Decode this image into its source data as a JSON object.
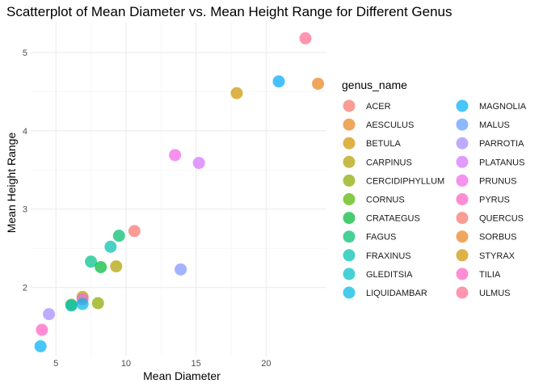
{
  "chart_data": {
    "type": "scatter",
    "title": "Scatterplot of Mean Diameter vs. Mean Height Range for Different Genus",
    "xlabel": "Mean Diameter",
    "ylabel": "Mean Height Range",
    "xlim": [
      3.2,
      24.3
    ],
    "ylim": [
      1.13,
      5.38
    ],
    "xticks": [
      5,
      10,
      15,
      20
    ],
    "yticks": [
      2,
      3,
      4,
      5
    ],
    "grid": true,
    "legend": {
      "title": "genus_name",
      "placement": "right",
      "columns": 2
    },
    "genera": [
      {
        "name": "ACER",
        "color": "#F8766D"
      },
      {
        "name": "AESCULUS",
        "color": "#E7851E"
      },
      {
        "name": "BETULA",
        "color": "#D09400"
      },
      {
        "name": "CARPINUS",
        "color": "#B2A100"
      },
      {
        "name": "CERCIDIPHYLLUM",
        "color": "#8BAB00"
      },
      {
        "name": "CORNUS",
        "color": "#55B400"
      },
      {
        "name": "CRATAEGUS",
        "color": "#00BA38"
      },
      {
        "name": "FAGUS",
        "color": "#00BE6C"
      },
      {
        "name": "FRAXINUS",
        "color": "#00C0AF"
      },
      {
        "name": "GLEDITSIA",
        "color": "#00BFC4"
      },
      {
        "name": "LIQUIDAMBAR",
        "color": "#00B8E5"
      },
      {
        "name": "MAGNOLIA",
        "color": "#00B0F6"
      },
      {
        "name": "MALUS",
        "color": "#619CFF"
      },
      {
        "name": "PARROTIA",
        "color": "#A58AFF"
      },
      {
        "name": "PLATANUS",
        "color": "#D575FE"
      },
      {
        "name": "PRUNUS",
        "color": "#F166E8"
      },
      {
        "name": "PYRUS",
        "color": "#FF61C3"
      },
      {
        "name": "QUERCUS",
        "color": "#F8766D"
      },
      {
        "name": "SORBUS",
        "color": "#E7851E"
      },
      {
        "name": "STYRAX",
        "color": "#D09400"
      },
      {
        "name": "TILIA",
        "color": "#FF61C3"
      },
      {
        "name": "ULMUS",
        "color": "#FF6C91"
      }
    ],
    "points": [
      {
        "x": 22.8,
        "y": 5.18,
        "color": "#FF6C91"
      },
      {
        "x": 23.7,
        "y": 4.6,
        "color": "#E7851E"
      },
      {
        "x": 20.9,
        "y": 4.63,
        "color": "#00A9FF"
      },
      {
        "x": 17.9,
        "y": 4.48,
        "color": "#D09400"
      },
      {
        "x": 13.5,
        "y": 3.69,
        "color": "#F166E8"
      },
      {
        "x": 15.2,
        "y": 3.59,
        "color": "#D575FE"
      },
      {
        "x": 10.6,
        "y": 2.72,
        "color": "#F8766D"
      },
      {
        "x": 9.5,
        "y": 2.66,
        "color": "#00BE6C"
      },
      {
        "x": 8.9,
        "y": 2.52,
        "color": "#00C0AF"
      },
      {
        "x": 7.5,
        "y": 2.33,
        "color": "#00C08B"
      },
      {
        "x": 8.2,
        "y": 2.26,
        "color": "#00BA38"
      },
      {
        "x": 9.3,
        "y": 2.27,
        "color": "#B2A100"
      },
      {
        "x": 13.9,
        "y": 2.23,
        "color": "#7F96FF"
      },
      {
        "x": 6.9,
        "y": 1.88,
        "color": "#B2A100"
      },
      {
        "x": 6.9,
        "y": 1.85,
        "color": "#F166E8"
      },
      {
        "x": 8.0,
        "y": 1.8,
        "color": "#8BAB00"
      },
      {
        "x": 6.1,
        "y": 1.78,
        "color": "#55B400"
      },
      {
        "x": 6.1,
        "y": 1.77,
        "color": "#00BFC4"
      },
      {
        "x": 6.9,
        "y": 1.79,
        "color": "#00B8E5"
      },
      {
        "x": 4.5,
        "y": 1.66,
        "color": "#A58AFF"
      },
      {
        "x": 4.0,
        "y": 1.46,
        "color": "#FF61C3"
      },
      {
        "x": 3.9,
        "y": 1.25,
        "color": "#00B0F6"
      }
    ]
  }
}
